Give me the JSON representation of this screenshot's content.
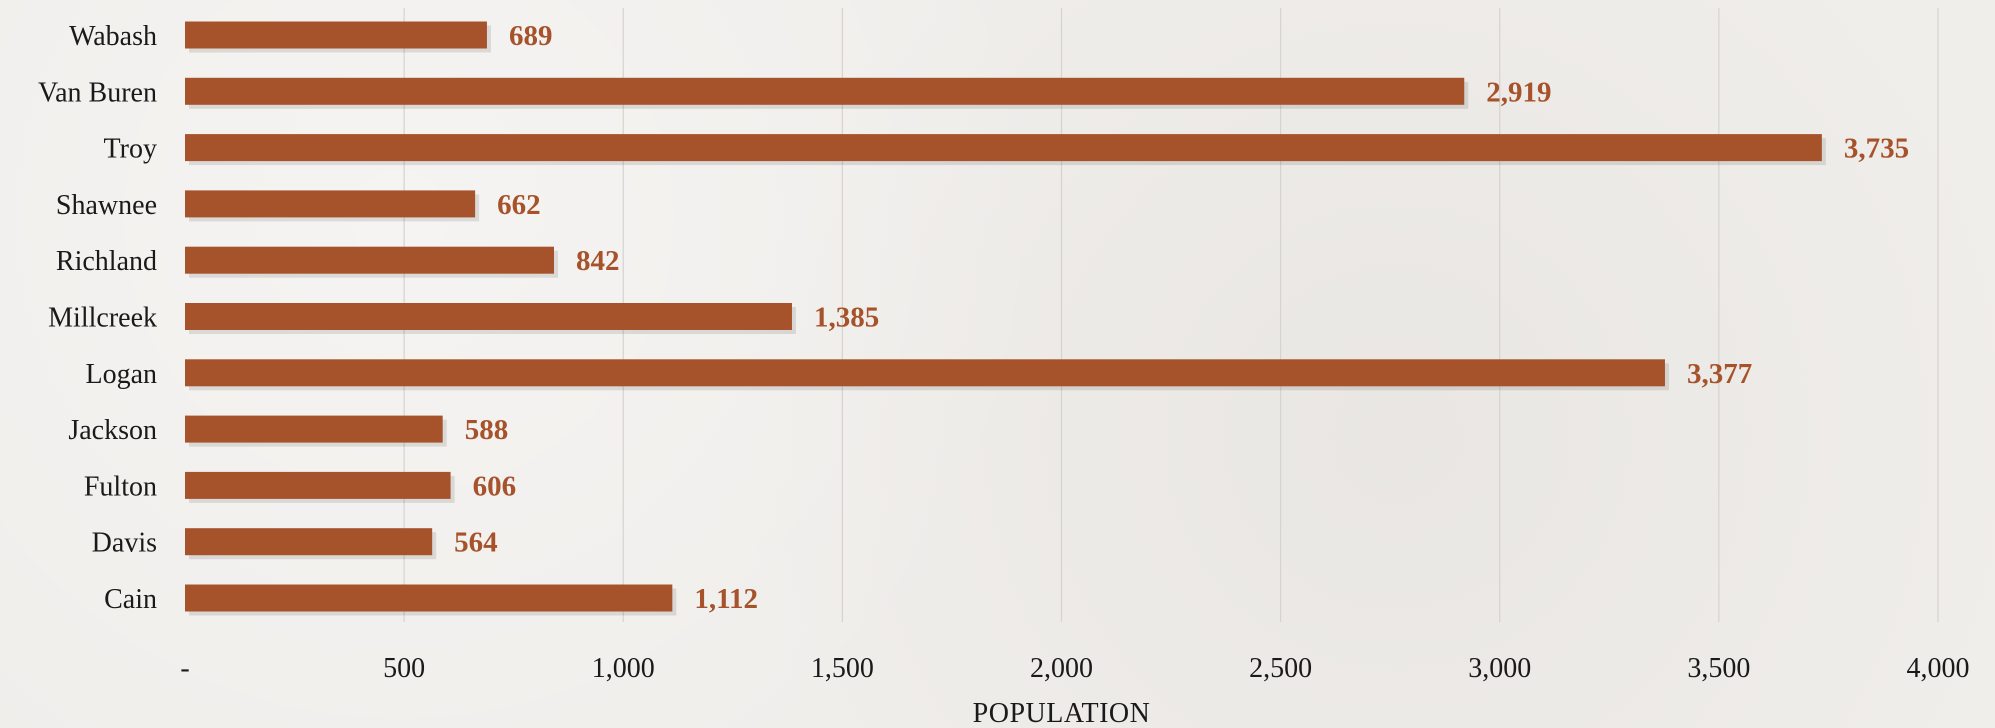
{
  "colors": {
    "bar": "#a6532b",
    "value_label": "#a6532b",
    "grid": "#d6d3cf",
    "text": "#1a1a1a"
  },
  "chart_data": {
    "type": "bar",
    "orientation": "horizontal",
    "categories": [
      "Wabash",
      "Van Buren",
      "Troy",
      "Shawnee",
      "Richland",
      "Millcreek",
      "Logan",
      "Jackson",
      "Fulton",
      "Davis",
      "Cain"
    ],
    "values": [
      689,
      2919,
      3735,
      662,
      842,
      1385,
      3377,
      588,
      606,
      564,
      1112
    ],
    "value_labels": [
      "689",
      "2,919",
      "3,735",
      "662",
      "842",
      "1,385",
      "3,377",
      "588",
      "606",
      "564",
      "1,112"
    ],
    "title": "",
    "xlabel": "POPULATION",
    "ylabel": "",
    "xlim": [
      0,
      4000
    ],
    "x_ticks": [
      0,
      500,
      1000,
      1500,
      2000,
      2500,
      3000,
      3500,
      4000
    ],
    "x_tick_labels": [
      "-",
      "500",
      "1,000",
      "1,500",
      "2,000",
      "2,500",
      "3,000",
      "3,500",
      "4,000"
    ],
    "grid": "vertical",
    "legend": "none"
  }
}
